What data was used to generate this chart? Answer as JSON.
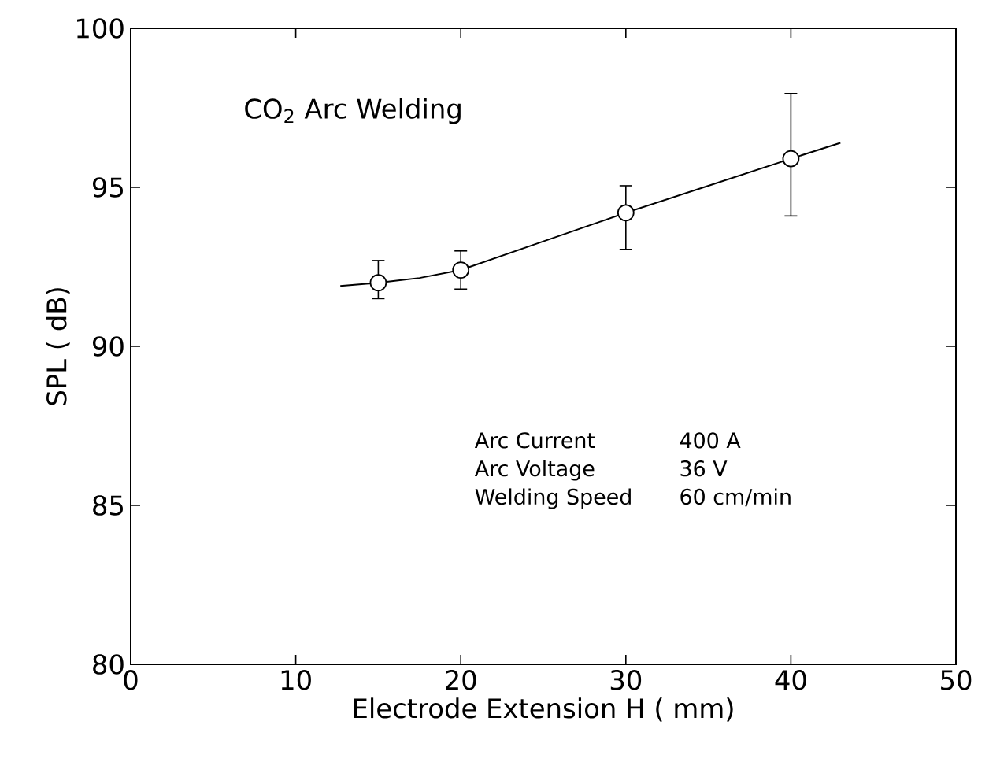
{
  "chart_data": {
    "type": "scatter",
    "title": "CO$_{2}$ Arc Welding",
    "xlabel": "Electrode Extension  H ( mm)",
    "ylabel": "SPL ( dB)",
    "xlim": [
      0,
      50
    ],
    "xticks": [
      0,
      10,
      20,
      30,
      40,
      50
    ],
    "ylim": [
      80,
      100
    ],
    "yticks": [
      80,
      85,
      90,
      95,
      100
    ],
    "grid": false,
    "marker": "circle",
    "annotations": [
      "Arc Current",
      "400 A",
      "Arc Voltage",
      "36 V",
      "Welding Speed",
      "60 cm/min"
    ],
    "series": [
      {
        "color": "#000000",
        "x": [
          15,
          20,
          30,
          40
        ],
        "values": [
          92.0,
          92.4,
          94.2,
          95.9
        ],
        "errors": [
          [
            91.5,
            92.7
          ],
          [
            91.8,
            93.0
          ],
          [
            93.05,
            95.05
          ],
          [
            94.1,
            97.95
          ]
        ]
      },
      {
        "type": "line",
        "color": "#000000",
        "marker": "none",
        "line_style": "solid",
        "x": [
          12.7,
          15,
          17.5,
          20,
          25,
          30,
          35,
          40,
          43
        ],
        "values": [
          91.9,
          92.0,
          92.15,
          92.4,
          93.3,
          94.2,
          95.05,
          95.9,
          96.4
        ]
      }
    ]
  }
}
